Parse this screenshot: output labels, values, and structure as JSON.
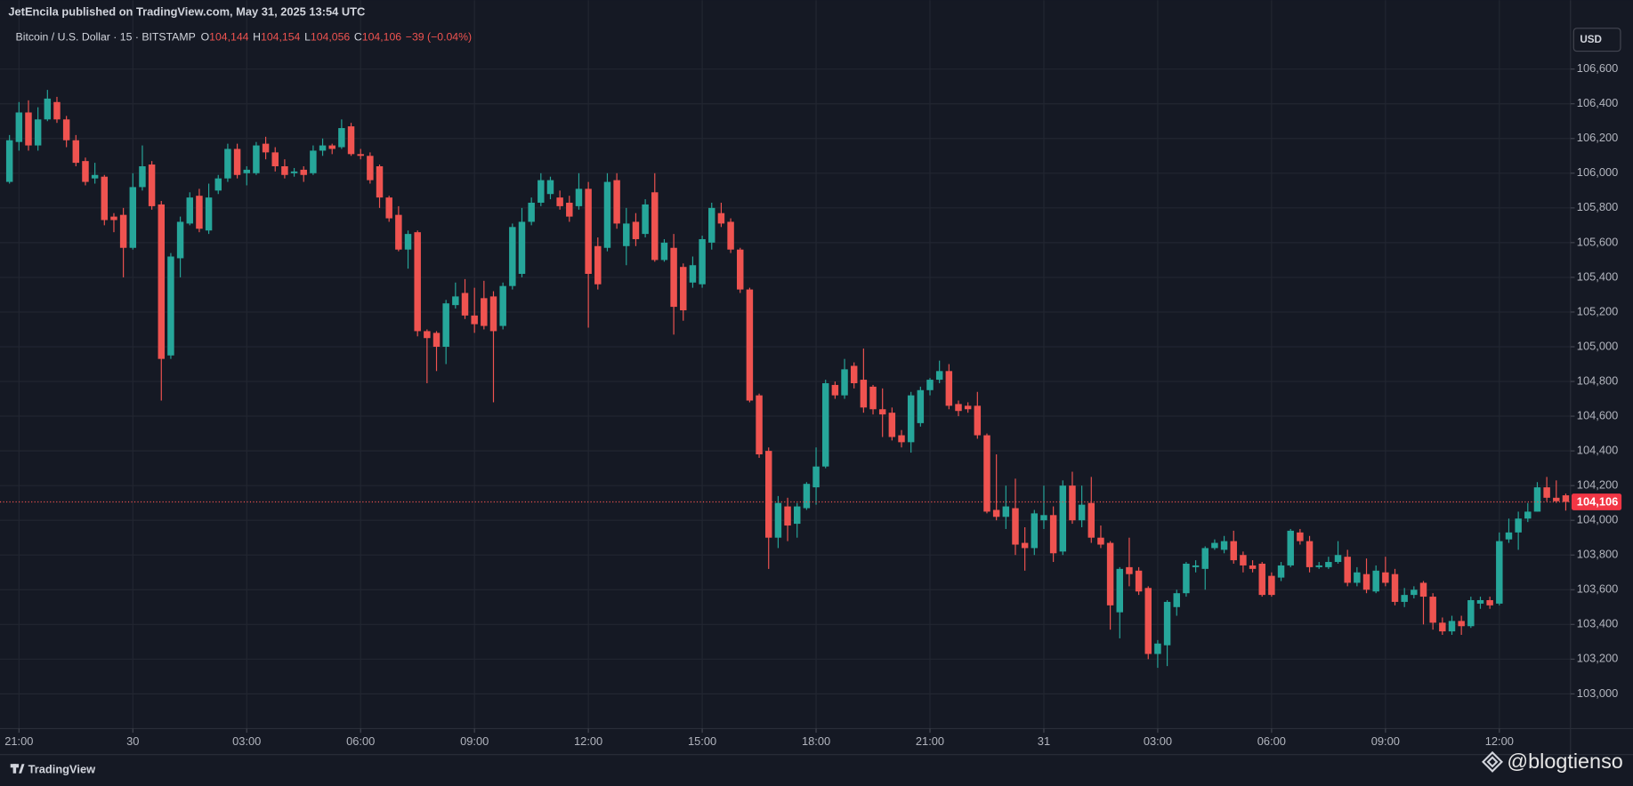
{
  "header": {
    "published": "JetEncila published on TradingView.com, May 31, 2025 13:54 UTC",
    "symbol": "Bitcoin / U.S. Dollar · 15 · BITSTAMP",
    "ohlc": [
      {
        "key": "O",
        "value": "104,144"
      },
      {
        "key": "H",
        "value": "104,154"
      },
      {
        "key": "L",
        "value": "104,056"
      },
      {
        "key": "C",
        "value": "104,106"
      }
    ],
    "change": "−39 (−0.04%)",
    "currency": "USD"
  },
  "chart_data": {
    "type": "candlestick",
    "up_color": "#26a69a",
    "down_color": "#ef5350",
    "grid": true,
    "xlim": [
      -1,
      164.5
    ],
    "xticks": [
      {
        "value": 1,
        "label": "21:00"
      },
      {
        "value": 13,
        "label": "30"
      },
      {
        "value": 25,
        "label": "03:00"
      },
      {
        "value": 37,
        "label": "06:00"
      },
      {
        "value": 49,
        "label": "09:00"
      },
      {
        "value": 61,
        "label": "12:00"
      },
      {
        "value": 73,
        "label": "15:00"
      },
      {
        "value": 85,
        "label": "18:00"
      },
      {
        "value": 97,
        "label": "21:00"
      },
      {
        "value": 109,
        "label": "31"
      },
      {
        "value": 121,
        "label": "03:00"
      },
      {
        "value": 133,
        "label": "06:00"
      },
      {
        "value": 145,
        "label": "09:00"
      },
      {
        "value": 157,
        "label": "12:00"
      }
    ],
    "ylim": [
      102800,
      106865
    ],
    "yticks": [
      {
        "value": 103000,
        "label": "103,000"
      },
      {
        "value": 103200,
        "label": "103,200"
      },
      {
        "value": 103400,
        "label": "103,400"
      },
      {
        "value": 103600,
        "label": "103,600"
      },
      {
        "value": 103800,
        "label": "103,800"
      },
      {
        "value": 104000,
        "label": "104,000"
      },
      {
        "value": 104200,
        "label": "104,200"
      },
      {
        "value": 104400,
        "label": "104,400"
      },
      {
        "value": 104600,
        "label": "104,600"
      },
      {
        "value": 104800,
        "label": "104,800"
      },
      {
        "value": 105000,
        "label": "105,000"
      },
      {
        "value": 105200,
        "label": "105,200"
      },
      {
        "value": 105400,
        "label": "105,400"
      },
      {
        "value": 105600,
        "label": "105,600"
      },
      {
        "value": 105800,
        "label": "105,800"
      },
      {
        "value": 106000,
        "label": "106,000"
      },
      {
        "value": 106200,
        "label": "106,200"
      },
      {
        "value": 106400,
        "label": "106,400"
      },
      {
        "value": 106600,
        "label": "106,600"
      }
    ],
    "last_price": {
      "value": 104106,
      "label": "104,106"
    },
    "ohlc": [
      [
        105950,
        106220,
        105940,
        106190
      ],
      [
        106180,
        106410,
        106130,
        106350
      ],
      [
        106350,
        106420,
        106130,
        106160
      ],
      [
        106160,
        106380,
        106130,
        106310
      ],
      [
        106310,
        106480,
        106300,
        106430
      ],
      [
        106410,
        106440,
        106290,
        106310
      ],
      [
        106310,
        106330,
        106150,
        106190
      ],
      [
        106190,
        106220,
        106040,
        106060
      ],
      [
        106070,
        106090,
        105930,
        105950
      ],
      [
        105970,
        106060,
        105940,
        105990
      ],
      [
        105980,
        105990,
        105700,
        105730
      ],
      [
        105750,
        105770,
        105660,
        105730
      ],
      [
        105760,
        105800,
        105400,
        105570
      ],
      [
        105570,
        106000,
        105560,
        105920
      ],
      [
        105920,
        106160,
        105900,
        106040
      ],
      [
        106050,
        106070,
        105790,
        105810
      ],
      [
        105820,
        105840,
        104690,
        104930
      ],
      [
        104950,
        105540,
        104930,
        105520
      ],
      [
        105510,
        105750,
        105400,
        105720
      ],
      [
        105710,
        105890,
        105700,
        105860
      ],
      [
        105870,
        105910,
        105660,
        105680
      ],
      [
        105670,
        105940,
        105650,
        105860
      ],
      [
        105900,
        105990,
        105880,
        105970
      ],
      [
        105970,
        106170,
        105950,
        106140
      ],
      [
        106140,
        106170,
        105970,
        105990
      ],
      [
        106000,
        106040,
        105930,
        106020
      ],
      [
        106000,
        106180,
        105990,
        106160
      ],
      [
        106170,
        106210,
        106080,
        106120
      ],
      [
        106120,
        106150,
        106010,
        106040
      ],
      [
        106040,
        106080,
        105970,
        105990
      ],
      [
        106000,
        106030,
        105980,
        106010
      ],
      [
        106020,
        106040,
        105950,
        105990
      ],
      [
        106000,
        106160,
        105990,
        106130
      ],
      [
        106130,
        106200,
        106100,
        106160
      ],
      [
        106160,
        106170,
        106110,
        106140
      ],
      [
        106150,
        106310,
        106140,
        106260
      ],
      [
        106270,
        106290,
        106100,
        106110
      ],
      [
        106110,
        106140,
        106080,
        106100
      ],
      [
        106100,
        106120,
        105940,
        105960
      ],
      [
        106040,
        106050,
        105800,
        105860
      ],
      [
        105860,
        105870,
        105720,
        105740
      ],
      [
        105760,
        105810,
        105550,
        105560
      ],
      [
        105560,
        105670,
        105450,
        105650
      ],
      [
        105660,
        105670,
        105060,
        105090
      ],
      [
        105090,
        105100,
        104790,
        105050
      ],
      [
        105080,
        105090,
        104860,
        105000
      ],
      [
        105000,
        105270,
        104900,
        105250
      ],
      [
        105240,
        105370,
        105220,
        105290
      ],
      [
        105310,
        105390,
        105160,
        105180
      ],
      [
        105180,
        105340,
        105080,
        105130
      ],
      [
        105280,
        105380,
        105100,
        105120
      ],
      [
        105290,
        105320,
        104680,
        105090
      ],
      [
        105120,
        105370,
        105100,
        105350
      ],
      [
        105350,
        105710,
        105330,
        105690
      ],
      [
        105420,
        105800,
        105400,
        105720
      ],
      [
        105720,
        105860,
        105700,
        105830
      ],
      [
        105830,
        106000,
        105810,
        105960
      ],
      [
        105880,
        105980,
        105850,
        105960
      ],
      [
        105860,
        105900,
        105790,
        105810
      ],
      [
        105830,
        105870,
        105720,
        105750
      ],
      [
        105810,
        106000,
        105790,
        105910
      ],
      [
        105910,
        105950,
        105110,
        105420
      ],
      [
        105580,
        105630,
        105330,
        105360
      ],
      [
        105570,
        106000,
        105550,
        105950
      ],
      [
        105960,
        106000,
        105680,
        105710
      ],
      [
        105580,
        105800,
        105470,
        105710
      ],
      [
        105720,
        105770,
        105580,
        105620
      ],
      [
        105650,
        105850,
        105630,
        105820
      ],
      [
        105890,
        106000,
        105490,
        105500
      ],
      [
        105500,
        105620,
        105490,
        105600
      ],
      [
        105570,
        105650,
        105070,
        105230
      ],
      [
        105460,
        105480,
        105150,
        105210
      ],
      [
        105370,
        105520,
        105340,
        105470
      ],
      [
        105360,
        105640,
        105340,
        105620
      ],
      [
        105600,
        105830,
        105560,
        105800
      ],
      [
        105770,
        105830,
        105690,
        105710
      ],
      [
        105720,
        105740,
        105540,
        105560
      ],
      [
        105560,
        105570,
        105310,
        105330
      ],
      [
        105330,
        105340,
        104680,
        104690
      ],
      [
        104720,
        104730,
        104360,
        104380
      ],
      [
        104400,
        104420,
        103720,
        103900
      ],
      [
        103900,
        104140,
        103840,
        104100
      ],
      [
        104080,
        104130,
        103880,
        103970
      ],
      [
        103980,
        104100,
        103900,
        104080
      ],
      [
        104070,
        104220,
        104060,
        104210
      ],
      [
        104190,
        104420,
        104090,
        104310
      ],
      [
        104310,
        104810,
        104300,
        104790
      ],
      [
        104780,
        104800,
        104700,
        104720
      ],
      [
        104720,
        104930,
        104700,
        104870
      ],
      [
        104890,
        104910,
        104760,
        104790
      ],
      [
        104810,
        104990,
        104620,
        104650
      ],
      [
        104770,
        104780,
        104610,
        104640
      ],
      [
        104640,
        104760,
        104480,
        104610
      ],
      [
        104620,
        104650,
        104460,
        104480
      ],
      [
        104490,
        104520,
        104420,
        104450
      ],
      [
        104450,
        104740,
        104390,
        104720
      ],
      [
        104560,
        104770,
        104540,
        104750
      ],
      [
        104750,
        104820,
        104720,
        104810
      ],
      [
        104810,
        104920,
        104790,
        104860
      ],
      [
        104860,
        104900,
        104640,
        104660
      ],
      [
        104670,
        104690,
        104600,
        104630
      ],
      [
        104660,
        104680,
        104620,
        104640
      ],
      [
        104660,
        104740,
        104470,
        104490
      ],
      [
        104490,
        104500,
        104040,
        104050
      ],
      [
        104060,
        104380,
        104000,
        104020
      ],
      [
        104020,
        104200,
        103950,
        104080
      ],
      [
        104070,
        104240,
        103800,
        103860
      ],
      [
        103870,
        103960,
        103710,
        103840
      ],
      [
        103840,
        104060,
        103800,
        104040
      ],
      [
        104000,
        104200,
        103950,
        104030
      ],
      [
        104030,
        104080,
        103760,
        103810
      ],
      [
        103820,
        104230,
        103800,
        104200
      ],
      [
        104200,
        104280,
        103980,
        104000
      ],
      [
        104000,
        104200,
        103960,
        104090
      ],
      [
        104100,
        104250,
        103870,
        103900
      ],
      [
        103900,
        103970,
        103840,
        103860
      ],
      [
        103870,
        103880,
        103370,
        103510
      ],
      [
        103470,
        103730,
        103320,
        103720
      ],
      [
        103730,
        103900,
        103620,
        103690
      ],
      [
        103710,
        103730,
        103570,
        103590
      ],
      [
        103610,
        103620,
        103200,
        103230
      ],
      [
        103230,
        103310,
        103150,
        103290
      ],
      [
        103280,
        103540,
        103160,
        103530
      ],
      [
        103500,
        103600,
        103450,
        103580
      ],
      [
        103580,
        103760,
        103560,
        103750
      ],
      [
        103730,
        103770,
        103700,
        103740
      ],
      [
        103720,
        103850,
        103600,
        103840
      ],
      [
        103840,
        103890,
        103830,
        103870
      ],
      [
        103830,
        103910,
        103810,
        103880
      ],
      [
        103880,
        103940,
        103750,
        103770
      ],
      [
        103800,
        103820,
        103700,
        103740
      ],
      [
        103740,
        103770,
        103700,
        103720
      ],
      [
        103750,
        103760,
        103560,
        103570
      ],
      [
        103680,
        103700,
        103560,
        103570
      ],
      [
        103670,
        103760,
        103650,
        103740
      ],
      [
        103740,
        103950,
        103730,
        103940
      ],
      [
        103930,
        103950,
        103860,
        103880
      ],
      [
        103880,
        103910,
        103700,
        103730
      ],
      [
        103730,
        103760,
        103720,
        103740
      ],
      [
        103730,
        103790,
        103720,
        103760
      ],
      [
        103760,
        103880,
        103750,
        103800
      ],
      [
        103790,
        103830,
        103620,
        103640
      ],
      [
        103640,
        103730,
        103620,
        103700
      ],
      [
        103690,
        103780,
        103580,
        103600
      ],
      [
        103590,
        103740,
        103580,
        103710
      ],
      [
        103700,
        103790,
        103620,
        103640
      ],
      [
        103690,
        103720,
        103510,
        103530
      ],
      [
        103530,
        103610,
        103500,
        103570
      ],
      [
        103570,
        103620,
        103550,
        103600
      ],
      [
        103640,
        103650,
        103400,
        103560
      ],
      [
        103560,
        103580,
        103370,
        103410
      ],
      [
        103410,
        103440,
        103340,
        103360
      ],
      [
        103360,
        103450,
        103340,
        103420
      ],
      [
        103420,
        103450,
        103340,
        103390
      ],
      [
        103390,
        103560,
        103380,
        103540
      ],
      [
        103520,
        103560,
        103490,
        103540
      ],
      [
        103540,
        103560,
        103490,
        103510
      ],
      [
        103520,
        103930,
        103510,
        103880
      ],
      [
        103890,
        104010,
        103870,
        103930
      ],
      [
        103930,
        104050,
        103830,
        104010
      ],
      [
        104010,
        104100,
        103990,
        104050
      ],
      [
        104050,
        104220,
        104050,
        104190
      ],
      [
        104190,
        104250,
        104110,
        104130
      ],
      [
        104130,
        104230,
        104100,
        104110
      ],
      [
        104144,
        104154,
        104056,
        104106
      ]
    ]
  },
  "footer": {
    "brand": "TradingView",
    "watermark": "@blogtienso"
  }
}
